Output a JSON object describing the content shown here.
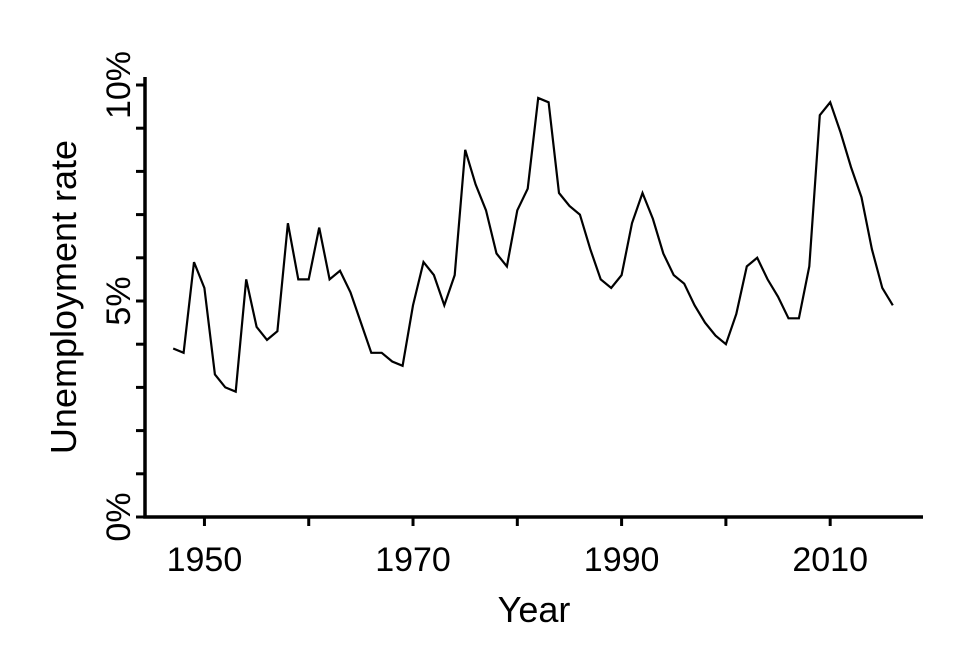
{
  "chart_data": {
    "type": "line",
    "title": "",
    "xlabel": "Year",
    "ylabel": "Unemployment rate",
    "xlim": [
      1944.3,
      2018.9
    ],
    "ylim": [
      0,
      10
    ],
    "grid": false,
    "legend": false,
    "colors": {
      "line": "#000000",
      "axis": "#000000",
      "text": "#000000",
      "background": "#ffffff"
    },
    "x_ticks": [
      {
        "v": 1950,
        "label": "1950"
      },
      {
        "v": 1960,
        "label": ""
      },
      {
        "v": 1970,
        "label": "1970"
      },
      {
        "v": 1980,
        "label": ""
      },
      {
        "v": 1990,
        "label": "1990"
      },
      {
        "v": 2000,
        "label": ""
      },
      {
        "v": 2010,
        "label": "2010"
      }
    ],
    "y_ticks": [
      {
        "v": 0,
        "label": "0%"
      },
      {
        "v": 1,
        "label": ""
      },
      {
        "v": 2,
        "label": ""
      },
      {
        "v": 3,
        "label": ""
      },
      {
        "v": 4,
        "label": ""
      },
      {
        "v": 5,
        "label": "5%"
      },
      {
        "v": 6,
        "label": ""
      },
      {
        "v": 7,
        "label": ""
      },
      {
        "v": 8,
        "label": ""
      },
      {
        "v": 9,
        "label": ""
      },
      {
        "v": 10,
        "label": "10%"
      }
    ],
    "x": [
      1947,
      1948,
      1949,
      1950,
      1951,
      1952,
      1953,
      1954,
      1955,
      1956,
      1957,
      1958,
      1959,
      1960,
      1961,
      1962,
      1963,
      1964,
      1965,
      1966,
      1967,
      1968,
      1969,
      1970,
      1971,
      1972,
      1973,
      1974,
      1975,
      1976,
      1977,
      1978,
      1979,
      1980,
      1981,
      1982,
      1983,
      1984,
      1985,
      1986,
      1987,
      1988,
      1989,
      1990,
      1991,
      1992,
      1993,
      1994,
      1995,
      1996,
      1997,
      1998,
      1999,
      2000,
      2001,
      2002,
      2003,
      2004,
      2005,
      2006,
      2007,
      2008,
      2009,
      2010,
      2011,
      2012,
      2013,
      2014,
      2015,
      2016
    ],
    "series": [
      {
        "name": "Unemployment rate",
        "values": [
          3.9,
          3.8,
          5.9,
          5.3,
          3.3,
          3.0,
          2.9,
          5.5,
          4.4,
          4.1,
          4.3,
          6.8,
          5.5,
          5.5,
          6.7,
          5.5,
          5.7,
          5.2,
          4.5,
          3.8,
          3.8,
          3.6,
          3.5,
          4.9,
          5.9,
          5.6,
          4.9,
          5.6,
          8.5,
          7.7,
          7.1,
          6.1,
          5.8,
          7.1,
          7.6,
          9.7,
          9.6,
          7.5,
          7.2,
          7.0,
          6.2,
          5.5,
          5.3,
          5.6,
          6.8,
          7.5,
          6.9,
          6.1,
          5.6,
          5.4,
          4.9,
          4.5,
          4.2,
          4.0,
          4.7,
          5.8,
          6.0,
          5.5,
          5.1,
          4.6,
          4.6,
          5.8,
          9.3,
          9.6,
          8.9,
          8.1,
          7.4,
          6.2,
          5.3,
          4.9
        ]
      }
    ]
  }
}
